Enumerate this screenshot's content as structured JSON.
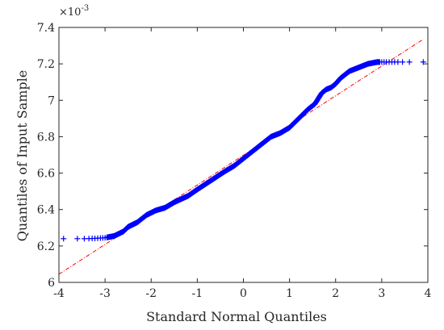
{
  "chart_data": {
    "type": "scatter",
    "title": "",
    "xlabel": "Standard Normal Quantiles",
    "ylabel": "Quantiles of Input Sample",
    "y_exponent_label": "×10",
    "y_exponent_power": "-3",
    "xlim": [
      -4,
      4
    ],
    "ylim": [
      6.0,
      7.4
    ],
    "y_scale_factor": 0.001,
    "x_ticks": [
      -4,
      -3,
      -2,
      -1,
      0,
      1,
      2,
      3,
      4
    ],
    "x_tick_labels": [
      "-4",
      "-3",
      "-2",
      "-1",
      "0",
      "1",
      "2",
      "3",
      "4"
    ],
    "y_ticks": [
      6.0,
      6.2,
      6.4,
      6.6,
      6.8,
      7.0,
      7.2,
      7.4
    ],
    "y_tick_labels": [
      "6",
      "6.2",
      "6.4",
      "6.6",
      "6.8",
      "7",
      "7.2",
      "7.4"
    ],
    "grid": false,
    "marker": "+",
    "colors": {
      "points": "#0000ff",
      "reference_line": "#ff0000",
      "axes": "#262626"
    },
    "qq_curve": [
      [
        -3.9,
        6.24
      ],
      [
        -3.6,
        6.24
      ],
      [
        -3.4,
        6.24
      ],
      [
        -3.2,
        6.242
      ],
      [
        -3.0,
        6.245
      ],
      [
        -2.8,
        6.255
      ],
      [
        -2.6,
        6.28
      ],
      [
        -2.5,
        6.305
      ],
      [
        -2.3,
        6.33
      ],
      [
        -2.1,
        6.37
      ],
      [
        -1.9,
        6.395
      ],
      [
        -1.7,
        6.41
      ],
      [
        -1.5,
        6.44
      ],
      [
        -1.2,
        6.475
      ],
      [
        -1.0,
        6.51
      ],
      [
        -0.7,
        6.56
      ],
      [
        -0.4,
        6.61
      ],
      [
        -0.2,
        6.64
      ],
      [
        0.0,
        6.68
      ],
      [
        0.2,
        6.72
      ],
      [
        0.4,
        6.76
      ],
      [
        0.6,
        6.8
      ],
      [
        0.8,
        6.82
      ],
      [
        1.0,
        6.85
      ],
      [
        1.2,
        6.9
      ],
      [
        1.4,
        6.95
      ],
      [
        1.55,
        6.98
      ],
      [
        1.6,
        7.0
      ],
      [
        1.7,
        7.04
      ],
      [
        1.8,
        7.06
      ],
      [
        1.9,
        7.07
      ],
      [
        2.0,
        7.09
      ],
      [
        2.1,
        7.12
      ],
      [
        2.3,
        7.16
      ],
      [
        2.5,
        7.18
      ],
      [
        2.7,
        7.2
      ],
      [
        2.9,
        7.21
      ],
      [
        3.1,
        7.21
      ],
      [
        3.3,
        7.21
      ],
      [
        3.6,
        7.21
      ],
      [
        3.9,
        7.21
      ]
    ],
    "reference_line": {
      "x": [
        -4,
        3.9
      ],
      "y": [
        6.045,
        7.335
      ]
    }
  }
}
